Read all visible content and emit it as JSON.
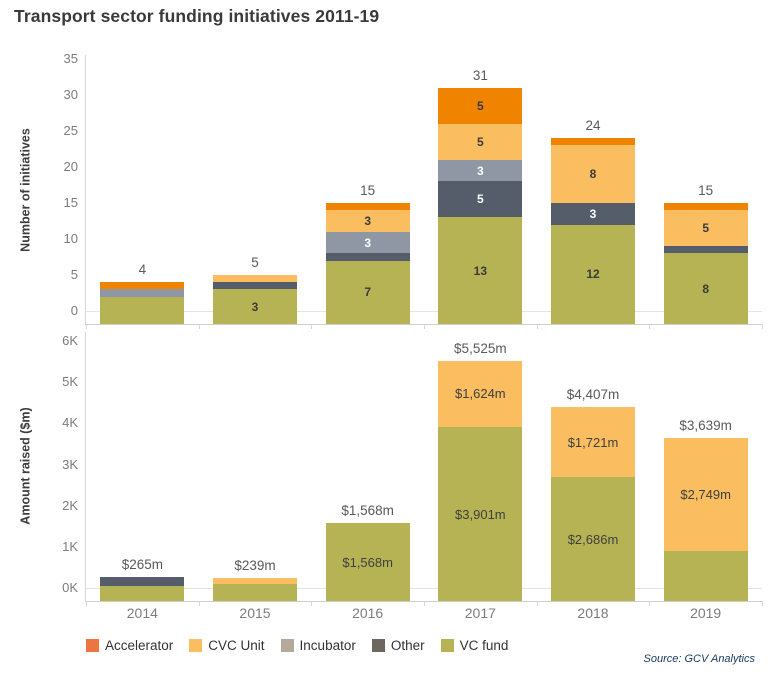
{
  "title": "Transport sector funding initiatives 2011-19",
  "source": "Source: GCV Analytics",
  "legend": [
    {
      "label": "Accelerator",
      "color": "#ED7542"
    },
    {
      "label": "CVC Unit",
      "color": "#FABD60"
    },
    {
      "label": "Incubator",
      "color": "#B5A99B"
    },
    {
      "label": "Other",
      "color": "#6E675F"
    },
    {
      "label": "VC fund",
      "color": "#B6B355"
    }
  ],
  "chart_data": [
    {
      "type": "bar",
      "stacked": true,
      "title": "",
      "xlabel": "",
      "ylabel": "Number of initiatives",
      "categories": [
        "2014",
        "2015",
        "2016",
        "2017",
        "2018",
        "2019"
      ],
      "ylim": [
        0,
        35
      ],
      "yticks": [
        0,
        5,
        10,
        15,
        20,
        25,
        30,
        35
      ],
      "ytick_labels": [
        "0",
        "5",
        "10",
        "15",
        "20",
        "25",
        "30",
        "35"
      ],
      "grid": false,
      "legend_position": "bottom",
      "totals": [
        "4",
        "5",
        "15",
        "31",
        "24",
        "15"
      ],
      "series": [
        {
          "name": "VC fund",
          "color": "#B6B355",
          "label_color": "#3B3B3B",
          "values": [
            2,
            3,
            7,
            13,
            12,
            8
          ],
          "labels": [
            "",
            "3",
            "7",
            "13",
            "12",
            "8"
          ]
        },
        {
          "name": "Other",
          "color": "#555D6B",
          "label_color": "#FFFFFF",
          "values": [
            0,
            1,
            1,
            5,
            3,
            1
          ],
          "labels": [
            "",
            "",
            "",
            "5",
            "3",
            ""
          ]
        },
        {
          "name": "Incubator",
          "color": "#8F96A4",
          "label_color": "#FFFFFF",
          "values": [
            1,
            0,
            3,
            3,
            0,
            0
          ],
          "labels": [
            "",
            "",
            "3",
            "3",
            "",
            ""
          ]
        },
        {
          "name": "CVC Unit",
          "color": "#FABD60",
          "label_color": "#3B3B3B",
          "values": [
            0,
            1,
            3,
            5,
            8,
            5
          ],
          "labels": [
            "",
            "",
            "3",
            "5",
            "8",
            "5"
          ]
        },
        {
          "name": "Accelerator",
          "color": "#F08300",
          "label_color": "#3B3B3B",
          "values": [
            1,
            0,
            1,
            5,
            1,
            1
          ],
          "labels": [
            "",
            "",
            "",
            "5",
            "",
            ""
          ]
        }
      ]
    },
    {
      "type": "bar",
      "stacked": true,
      "title": "",
      "xlabel": "",
      "ylabel": "Amount raised ($m)",
      "categories": [
        "2014",
        "2015",
        "2016",
        "2017",
        "2018",
        "2019"
      ],
      "ylim": [
        0,
        6000
      ],
      "yticks": [
        0,
        1000,
        2000,
        3000,
        4000,
        5000,
        6000
      ],
      "ytick_labels": [
        "0K",
        "1K",
        "2K",
        "3K",
        "4K",
        "5K",
        "6K"
      ],
      "grid": false,
      "legend_position": "bottom",
      "totals": [
        "$265m",
        "$239m",
        "$1,568m",
        "$5,525m",
        "$4,407m",
        "$3,639m"
      ],
      "series": [
        {
          "name": "VC fund",
          "color": "#B6B355",
          "label_color": "#3F3F3F",
          "values": [
            50,
            109,
            1568,
            3901,
            2686,
            890
          ],
          "labels": [
            "",
            "",
            "$1,568m",
            "$3,901m",
            "$2,686m",
            ""
          ]
        },
        {
          "name": "Other",
          "color": "#555D6B",
          "label_color": "#FFFFFF",
          "values": [
            215,
            0,
            0,
            0,
            0,
            0
          ],
          "labels": [
            "",
            "",
            "",
            "",
            "",
            ""
          ]
        },
        {
          "name": "Incubator",
          "color": "#8F96A4",
          "label_color": "#FFFFFF",
          "values": [
            0,
            0,
            0,
            0,
            0,
            0
          ],
          "labels": [
            "",
            "",
            "",
            "",
            "",
            ""
          ]
        },
        {
          "name": "CVC Unit",
          "color": "#FABD60",
          "label_color": "#3F3F3F",
          "values": [
            0,
            130,
            0,
            1624,
            1721,
            2749
          ],
          "labels": [
            "",
            "",
            "",
            "$1,624m",
            "$1,721m",
            "$2,749m"
          ]
        },
        {
          "name": "Accelerator",
          "color": "#F08300",
          "label_color": "#3B3B3B",
          "values": [
            0,
            0,
            0,
            0,
            0,
            0
          ],
          "labels": [
            "",
            "",
            "",
            "",
            "",
            ""
          ]
        }
      ]
    }
  ]
}
